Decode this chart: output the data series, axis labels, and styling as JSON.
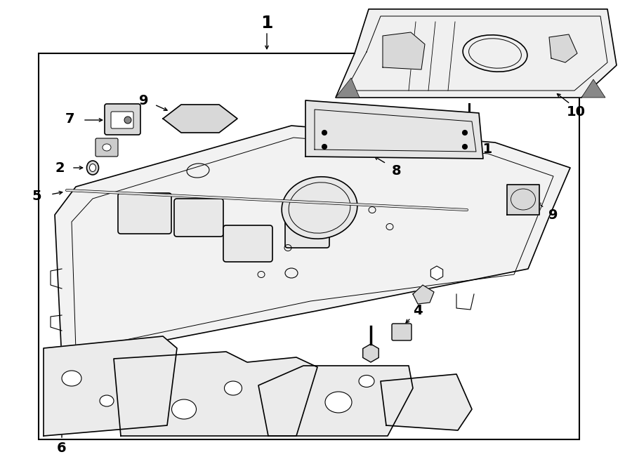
{
  "bg_color": "#ffffff",
  "line_color": "#000000",
  "lw": 1.2,
  "lw_thick": 1.8
}
